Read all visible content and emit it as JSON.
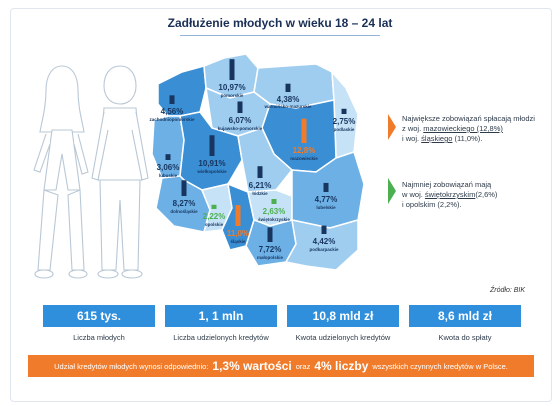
{
  "title": "Zadłużenie młodych w wieku 18 – 24 lat",
  "regions": [
    {
      "name": "zachodniopomorskie",
      "value": "4,56%"
    },
    {
      "name": "pomorskie",
      "value": "10,97%"
    },
    {
      "name": "warmińsko-mazurskie",
      "value": "4,38%"
    },
    {
      "name": "kujawsko-pomorskie",
      "value": "6,07%"
    },
    {
      "name": "podlaskie",
      "value": "2,75%"
    },
    {
      "name": "mazowieckie",
      "value": "12,8%"
    },
    {
      "name": "lubuskie",
      "value": "3,06%"
    },
    {
      "name": "wielkopolskie",
      "value": "10,91%"
    },
    {
      "name": "łódzkie",
      "value": "6,21%"
    },
    {
      "name": "dolnośląskie",
      "value": "8,27%"
    },
    {
      "name": "lubelskie",
      "value": "4,77%"
    },
    {
      "name": "opolskie",
      "value": "2,22%"
    },
    {
      "name": "śląskie",
      "value": "11,0%"
    },
    {
      "name": "świętokrzyskie",
      "value": "2,63%"
    },
    {
      "name": "małopolskie",
      "value": "7,72%"
    },
    {
      "name": "podkarpackie",
      "value": "4,42%"
    }
  ],
  "callouts": {
    "most": {
      "line1": "Największe zobowiązań spłacają młodzi",
      "line2_prefix": "z woj. ",
      "line2_underlined": "mazowieckiego (12,8%)",
      "line3_prefix": "i woj. ",
      "line3_underlined": "śląskiego",
      "line3_suffix": " (11,0%).",
      "marker_color": "#f07c2b"
    },
    "least": {
      "line1": "Najmniej zobowiązań mają",
      "line2_prefix": "w woj. ",
      "line2_underlined": "świętokrzyskim",
      "line2_suffix": "(2,6%)",
      "line3": "i opolskim (2,2%).",
      "marker_color": "#4caf50"
    }
  },
  "source": "Źródło: BIK",
  "stats": [
    {
      "value": "615 tys.",
      "label": "Liczba młodych"
    },
    {
      "value": "1, 1 mln",
      "label": "Liczba udzielonych kredytów"
    },
    {
      "value": "10,8 mld zł",
      "label": "Kwota udzielonych kredytów"
    },
    {
      "value": "8,6 mld zł",
      "label": "Kwota do spłaty"
    }
  ],
  "banner": {
    "prefix": "Udział kredytów młodych wynosi odpowiednio:",
    "big1": "1,3% wartości",
    "middle": "oraz",
    "big2": "4% liczby",
    "suffix": "wszystkich czynnych kredytów w Polsce."
  },
  "colors": {
    "accent_blue": "#2f8fdc",
    "accent_orange": "#f07c2b",
    "accent_green": "#4caf50",
    "map_dark": "#3a8ed4",
    "map_mid": "#6cb0e6",
    "map_light": "#9fcdf0",
    "map_pale": "#c6e2f7",
    "bar_navy": "#17355f"
  }
}
